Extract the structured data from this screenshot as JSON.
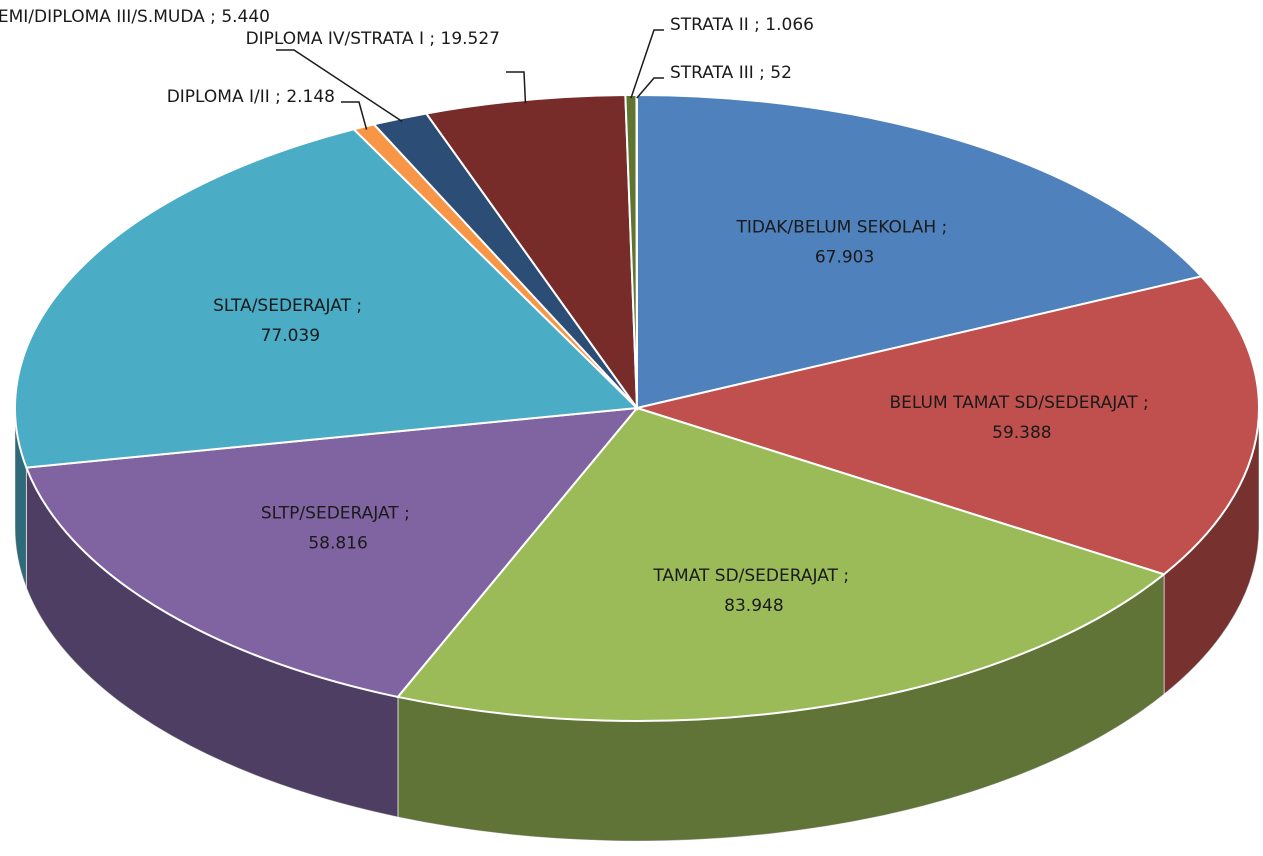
{
  "chart_data": {
    "type": "pie",
    "categories": [
      "TIDAK/BELUM SEKOLAH",
      "BELUM TAMAT SD/SEDERAJAT",
      "TAMAT SD/SEDERAJAT",
      "SLTP/SEDERAJAT",
      "SLTA/SEDERAJAT",
      "DIPLOMA I/II",
      "AKADEMI/DIPLOMA III/S.MUDA",
      "DIPLOMA IV/STRATA I",
      "STRATA II",
      "STRATA III"
    ],
    "values": [
      67903,
      59388,
      83948,
      58816,
      77039,
      2148,
      5440,
      19527,
      1066,
      52
    ],
    "value_labels": [
      "67.903",
      "59.388",
      "83.948",
      "58.816",
      "77.039",
      "2.148",
      "5.440",
      "19.527",
      "1.066",
      "52"
    ],
    "label_separator": " ; ",
    "colors": [
      "#4f81bd",
      "#c0504d",
      "#9bbb59",
      "#8064a2",
      "#4bacc6",
      "#f79646",
      "#2c4d75",
      "#772c2a",
      "#5f7530",
      "#3c5a26"
    ]
  }
}
